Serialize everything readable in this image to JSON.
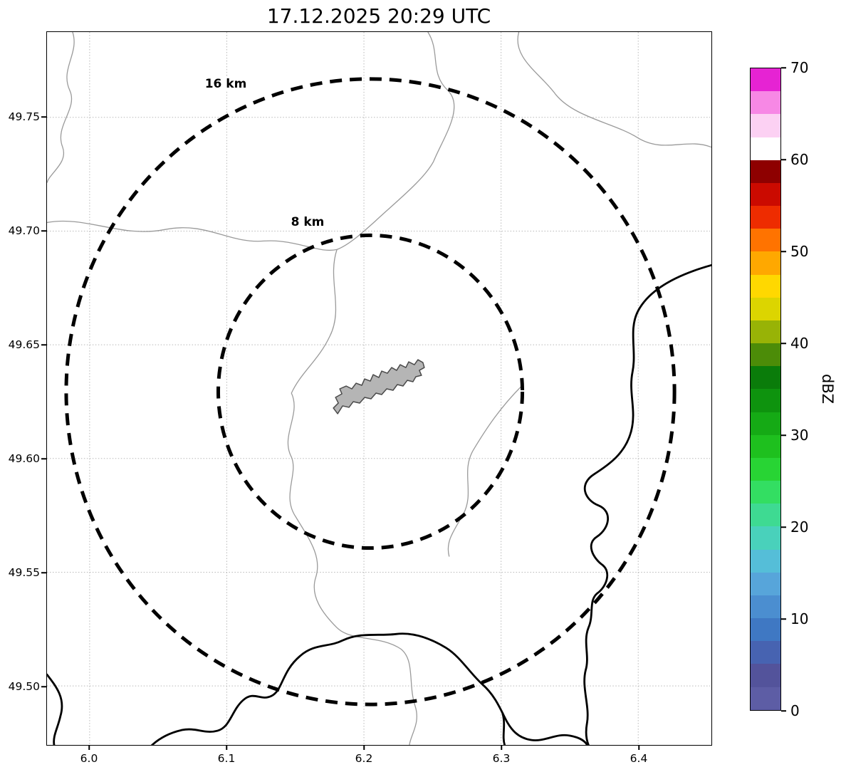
{
  "title": "17.12.2025 20:29 UTC",
  "map": {
    "x_ticks": [
      "6.0",
      "6.1",
      "6.2",
      "6.3",
      "6.4"
    ],
    "y_ticks": [
      "49.75",
      "49.70",
      "49.65",
      "49.60",
      "49.55",
      "49.50"
    ],
    "range_rings": [
      {
        "label": "16 km"
      },
      {
        "label": "8 km"
      }
    ],
    "features": {
      "city_boundary_fill": "#b5b5b5",
      "river_line_color": "#9a9a9a",
      "country_border_color": "#000000"
    }
  },
  "colorbar": {
    "label": "dBZ",
    "min": 0,
    "max": 70,
    "tick_values": [
      0,
      10,
      20,
      30,
      40,
      50,
      60,
      70
    ],
    "tick_labels": [
      "0",
      "10",
      "20",
      "30",
      "40",
      "50",
      "60",
      "70"
    ],
    "colors_bottom_to_top": [
      "#5d5da5",
      "#53539b",
      "#4763b1",
      "#3f78c3",
      "#4b8ed0",
      "#57a5da",
      "#55bed8",
      "#49d1bb",
      "#3eda92",
      "#33de62",
      "#28d434",
      "#1ec01e",
      "#15aa15",
      "#0e930e",
      "#0a7c0a",
      "#4c8c08",
      "#98b306",
      "#dcd500",
      "#ffd800",
      "#ffa800",
      "#ff7300",
      "#ee2c00",
      "#cb0a00",
      "#8e0000",
      "#ffffff",
      "#fcd1f3",
      "#f788e5",
      "#e623d3"
    ]
  }
}
